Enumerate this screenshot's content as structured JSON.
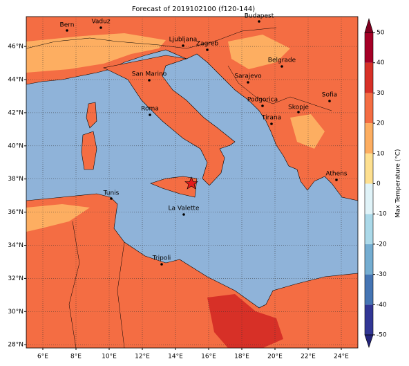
{
  "title": "Forecast of 2019102100 (f120-144)",
  "map": {
    "lonlim": [
      5,
      25
    ],
    "latlim": [
      27.8,
      47.8
    ],
    "xticks": [
      {
        "value": 6,
        "label": "6°E"
      },
      {
        "value": 8,
        "label": "8°E"
      },
      {
        "value": 10,
        "label": "10°E"
      },
      {
        "value": 12,
        "label": "12°E"
      },
      {
        "value": 14,
        "label": "14°E"
      },
      {
        "value": 16,
        "label": "16°E"
      },
      {
        "value": 18,
        "label": "18°E"
      },
      {
        "value": 20,
        "label": "20°E"
      },
      {
        "value": 22,
        "label": "22°E"
      },
      {
        "value": 24,
        "label": "24°E"
      }
    ],
    "yticks": [
      {
        "value": 28,
        "label": "28°N"
      },
      {
        "value": 30,
        "label": "30°N"
      },
      {
        "value": 32,
        "label": "32°N"
      },
      {
        "value": 34,
        "label": "34°N"
      },
      {
        "value": 36,
        "label": "36°N"
      },
      {
        "value": 38,
        "label": "38°N"
      },
      {
        "value": 40,
        "label": "40°N"
      },
      {
        "value": 42,
        "label": "42°N"
      },
      {
        "value": 44,
        "label": "44°N"
      },
      {
        "value": 46,
        "label": "46°N"
      }
    ],
    "grid": true,
    "cities": [
      "Bern",
      "Vaduz",
      "Budapest",
      "Ljubljana",
      "Zagreb",
      "Belgrade",
      "San Marino",
      "Sarajevo",
      "Sofia",
      "Podgorica",
      "Skopje",
      "Roma",
      "Tirana",
      "Athens",
      "Tunis",
      "La Valette",
      "Tripoli"
    ]
  },
  "colorbar": {
    "label": "Max Temperature (°C)",
    "lim": [
      -50,
      50
    ],
    "ticks": [
      -50,
      -40,
      -30,
      -20,
      -10,
      0,
      10,
      20,
      30,
      40,
      50
    ],
    "colors": [
      "#313695",
      "#4575b4",
      "#74add1",
      "#abd9e9",
      "#e0f3f8",
      "#fee090",
      "#fdae61",
      "#f46d43",
      "#d73027",
      "#a50026"
    ],
    "under_color": "#23237a",
    "over_color": "#7f0020"
  }
}
